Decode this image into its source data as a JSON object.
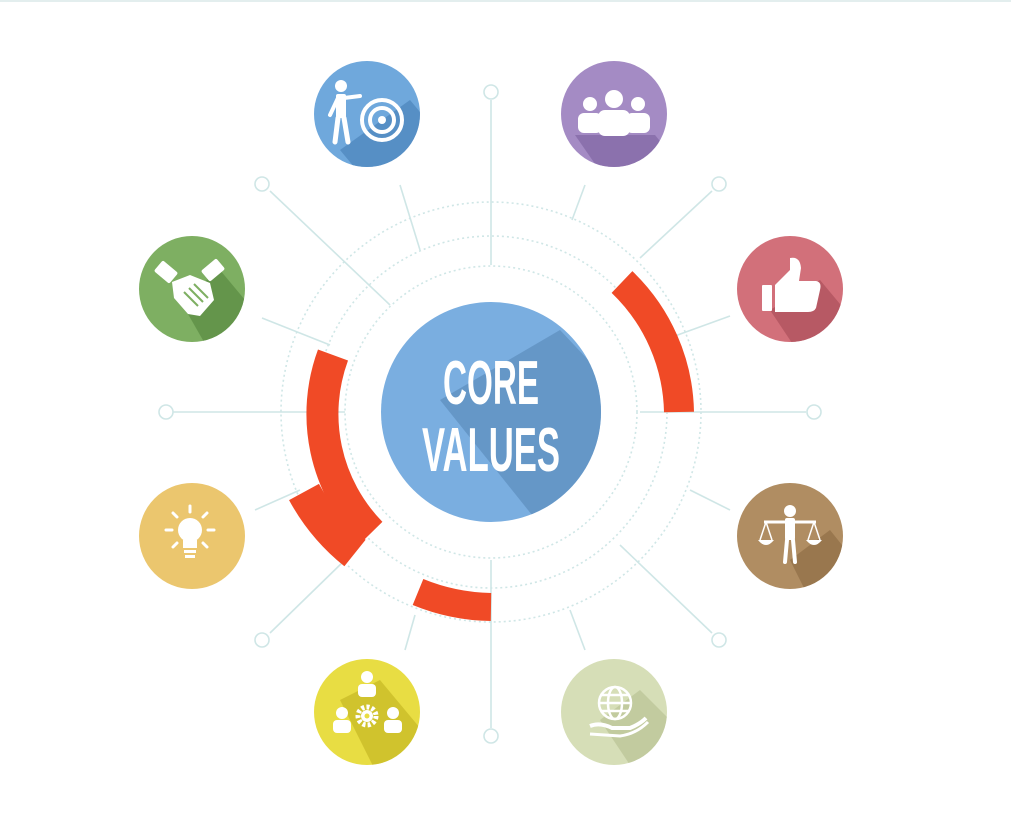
{
  "center": {
    "line1": "CORE",
    "line2": "VALUES",
    "color": "#7aaee0"
  },
  "accent_color": "#f04a26",
  "connector_color": "#cfe6e6",
  "nodes": [
    {
      "id": "target",
      "icon": "target-icon",
      "color": "#6fa8dc"
    },
    {
      "id": "team",
      "icon": "team-icon",
      "color": "#a48bc4"
    },
    {
      "id": "like",
      "icon": "thumbs-up-icon",
      "color": "#d2707a"
    },
    {
      "id": "justice",
      "icon": "scales-icon",
      "color": "#b08d62"
    },
    {
      "id": "global",
      "icon": "globe-hand-icon",
      "color": "#d6deb7"
    },
    {
      "id": "collaboration",
      "icon": "gear-team-icon",
      "color": "#e8dd43"
    },
    {
      "id": "idea",
      "icon": "lightbulb-icon",
      "color": "#ebc66e"
    },
    {
      "id": "partnership",
      "icon": "handshake-icon",
      "color": "#7eaf62"
    }
  ]
}
